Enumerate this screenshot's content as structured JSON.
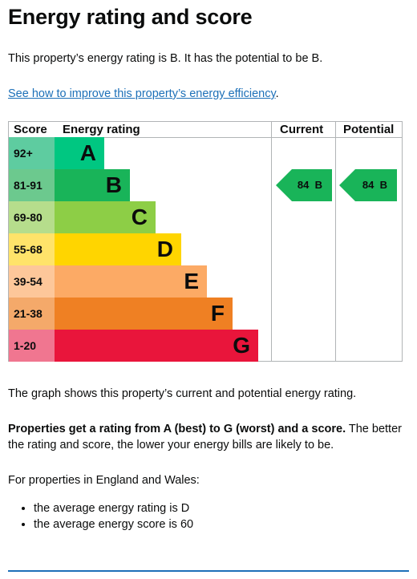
{
  "title": "Energy rating and score",
  "intro": "This property’s energy rating is B. It has the potential to be B.",
  "improve_link": "See how to improve this property’s energy efficiency",
  "improve_link_suffix": ".",
  "chart_data": {
    "type": "bar",
    "headers": {
      "score": "Score",
      "rating": "Energy rating",
      "current": "Current",
      "potential": "Potential"
    },
    "bands": [
      {
        "score": "92+",
        "letter": "A",
        "color": "#00c781",
        "score_bg": "#5ecca0"
      },
      {
        "score": "81-91",
        "letter": "B",
        "color": "#19b459",
        "score_bg": "#6cc98e"
      },
      {
        "score": "69-80",
        "letter": "C",
        "color": "#8dce46",
        "score_bg": "#b6dd8c"
      },
      {
        "score": "55-68",
        "letter": "D",
        "color": "#ffd500",
        "score_bg": "#ffe36a"
      },
      {
        "score": "39-54",
        "letter": "E",
        "color": "#fcaa65",
        "score_bg": "#fdc79a"
      },
      {
        "score": "21-38",
        "letter": "F",
        "color": "#ef8023",
        "score_bg": "#f4a96a"
      },
      {
        "score": "1-20",
        "letter": "G",
        "color": "#e9153b",
        "score_bg": "#f07690"
      }
    ],
    "current": {
      "score": 84,
      "band": "B",
      "label": "84  B",
      "color": "#19b459"
    },
    "potential": {
      "score": 84,
      "band": "B",
      "label": "84  B",
      "color": "#19b459"
    }
  },
  "graph_caption": "The graph shows this property’s current and potential energy rating.",
  "scale_bold": "Properties get a rating from A (best) to G (worst) and a score.",
  "scale_rest": " The better the rating and score, the lower your energy bills are likely to be.",
  "region_intro": "For properties in England and Wales:",
  "averages": [
    "the average energy rating is D",
    "the average energy score is 60"
  ]
}
